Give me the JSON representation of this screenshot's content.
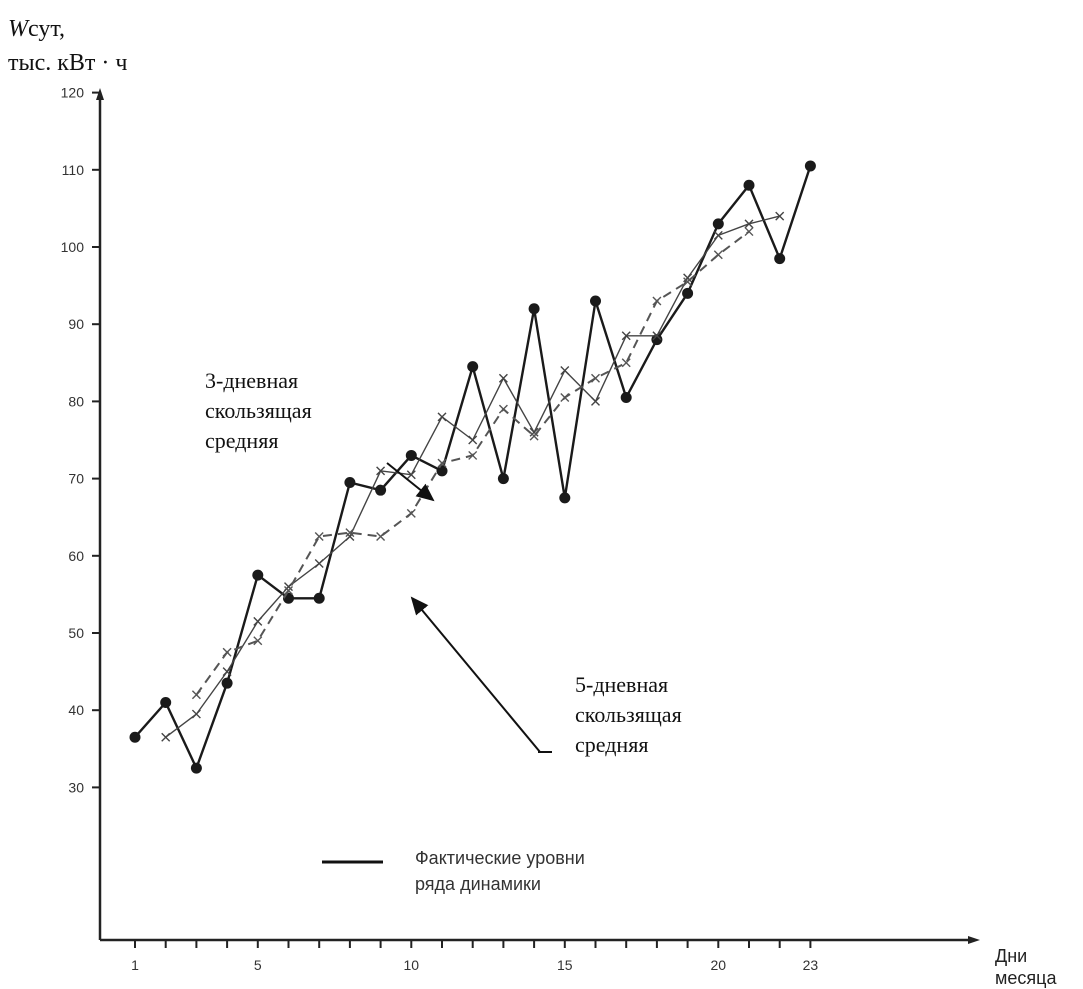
{
  "chart_data": {
    "type": "line",
    "ylabel_var": "W",
    "ylabel_sub": "сут,",
    "ylabel_unit": "тыс. кВт · ч",
    "xlabel_1": "Дни",
    "xlabel_2": "месяца",
    "ylim": [
      20,
      128
    ],
    "xlim": [
      0,
      28
    ],
    "yticks": [
      30,
      40,
      50,
      60,
      70,
      80,
      90,
      100,
      110,
      120
    ],
    "xticks": [
      1,
      2,
      3,
      4,
      5,
      6,
      7,
      8,
      9,
      10,
      11,
      12,
      13,
      14,
      15,
      16,
      17,
      18,
      19,
      20,
      21,
      22,
      23
    ],
    "xtick_labels": [
      {
        "x": 1,
        "label": "1"
      },
      {
        "x": 5,
        "label": "5"
      },
      {
        "x": 10,
        "label": "10"
      },
      {
        "x": 15,
        "label": "15"
      },
      {
        "x": 20,
        "label": "20"
      },
      {
        "x": 23,
        "label": "23"
      }
    ],
    "series": [
      {
        "style": "solid",
        "x": [
          1,
          2,
          3,
          4,
          5,
          6,
          7,
          8,
          9,
          10,
          11,
          12,
          13,
          14,
          15,
          16,
          17,
          18,
          19,
          20,
          21,
          22,
          23
        ],
        "values": [
          36.5,
          41,
          32.5,
          43.5,
          57.5,
          54.5,
          54.5,
          69.5,
          68.5,
          73,
          71,
          84.5,
          70,
          92,
          67.5,
          93,
          80.5,
          88,
          94,
          103,
          108,
          98.5,
          110.5
        ]
      },
      {
        "style": "solid-cross",
        "x": [
          2,
          3,
          4,
          5,
          6,
          7,
          8,
          9,
          10,
          11,
          12,
          13,
          14,
          15,
          16,
          17,
          18,
          19,
          20,
          21,
          22
        ],
        "values": [
          36.5,
          39.5,
          45,
          51.5,
          56,
          59,
          62.5,
          71,
          70.5,
          78,
          75,
          83,
          76,
          84,
          80,
          88.5,
          88.5,
          96,
          101.5,
          103,
          104
        ]
      },
      {
        "style": "dashed-cross",
        "x": [
          3,
          4,
          5,
          6,
          7,
          8,
          9,
          10,
          11,
          12,
          13,
          14,
          15,
          16,
          17,
          18,
          19,
          20,
          21
        ],
        "values": [
          42,
          47.5,
          49,
          55.5,
          62.5,
          63,
          62.5,
          65.5,
          72,
          73,
          79,
          75.5,
          80.5,
          83,
          85,
          93,
          95.5,
          99,
          102
        ]
      }
    ],
    "annotations": [
      {
        "lines": [
          "3-дневная",
          "скользящая",
          "средняя"
        ]
      },
      {
        "lines": [
          "5-дневная",
          "скользящая",
          "средняя"
        ]
      }
    ],
    "legend": {
      "lines": [
        "Фактические уровни",
        "ряда динамики"
      ]
    }
  }
}
